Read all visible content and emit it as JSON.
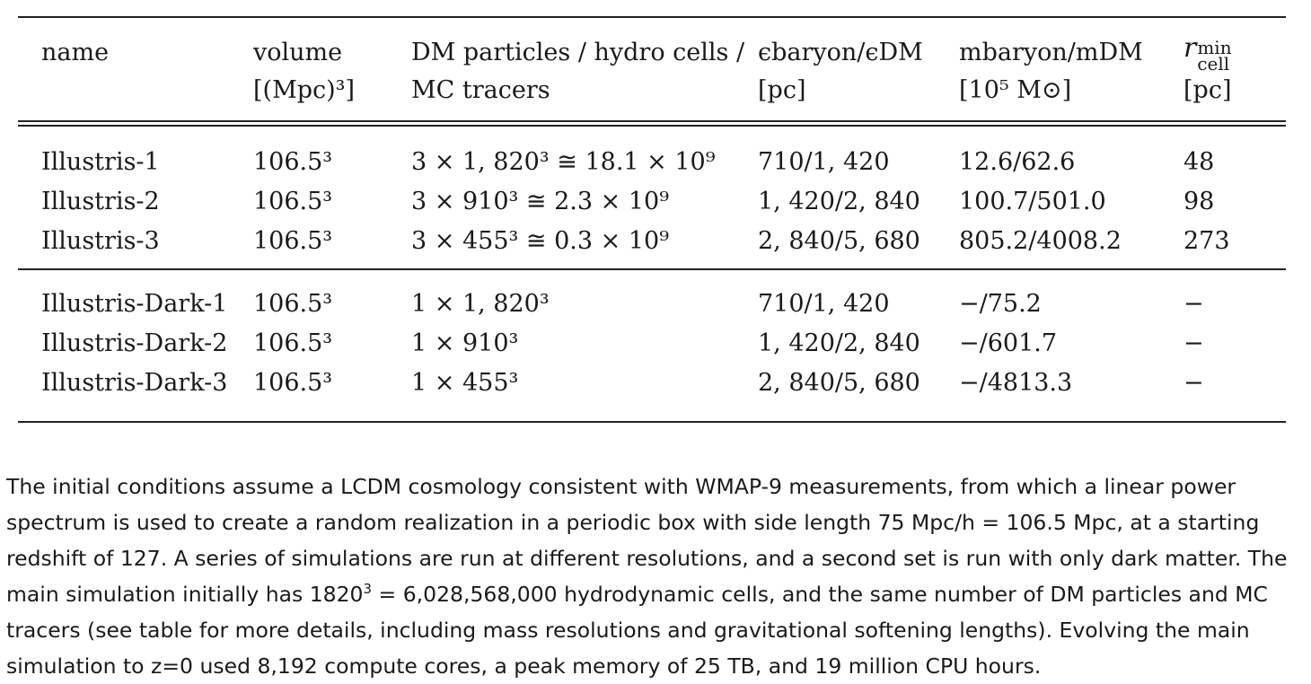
{
  "table": {
    "headers": {
      "name": "name",
      "volume_l1": "volume",
      "volume_l2": "[(Mpc)³]",
      "dm_l1": "DM particles / hydro cells /",
      "dm_l2": "MC tracers",
      "eps_l1": "ϵbaryon/ϵDM",
      "eps_l2": "[pc]",
      "mass_l1": "mbaryon/mDM",
      "mass_l2": "[10⁵ M⊙]",
      "r_main": "r",
      "r_sup": "min",
      "r_sub": "cell",
      "r_l2": "[pc]"
    },
    "groups": [
      {
        "rows": [
          {
            "name": "Illustris-1",
            "volume": "106.5³",
            "dm": "3 × 1, 820³ ≅ 18.1 × 10⁹",
            "eps": "710/1, 420",
            "mass": "12.6/62.6",
            "r": "48"
          },
          {
            "name": "Illustris-2",
            "volume": "106.5³",
            "dm": "3 × 910³ ≅ 2.3 × 10⁹",
            "eps": "1, 420/2, 840",
            "mass": "100.7/501.0",
            "r": "98"
          },
          {
            "name": "Illustris-3",
            "volume": "106.5³",
            "dm": "3 × 455³ ≅ 0.3 × 10⁹",
            "eps": "2, 840/5, 680",
            "mass": "805.2/4008.2",
            "r": "273"
          }
        ]
      },
      {
        "rows": [
          {
            "name": "Illustris-Dark-1",
            "volume": "106.5³",
            "dm": "1 × 1, 820³",
            "eps": "710/1, 420",
            "mass": "−/75.2",
            "r": "−"
          },
          {
            "name": "Illustris-Dark-2",
            "volume": "106.5³",
            "dm": "1 × 910³",
            "eps": "1, 420/2, 840",
            "mass": "−/601.7",
            "r": "−"
          },
          {
            "name": "Illustris-Dark-3",
            "volume": "106.5³",
            "dm": "1 × 455³",
            "eps": "2, 840/5, 680",
            "mass": "−/4813.3",
            "r": "−"
          }
        ]
      }
    ]
  },
  "paragraph": {
    "part1": "The initial conditions assume a LCDM cosmology consistent with WMAP-9 measurements, from which a linear power spectrum is used to create a random realization in a periodic box with side length 75 Mpc/h = 106.5 Mpc, at a starting redshift of 127. A series of simulations are run at different resolutions, and a second set is run with only dark matter. The main simulation initially has 1820",
    "sup": "3",
    "part2": " = 6,028,568,000 hydrodynamic cells, and the same number of DM particles and MC tracers (see table for more details, including mass resolutions and gravitational softening lengths). Evolving the main simulation to z=0 used 8,192 compute cores, a peak memory of 25 TB, and 19 million CPU hours."
  }
}
